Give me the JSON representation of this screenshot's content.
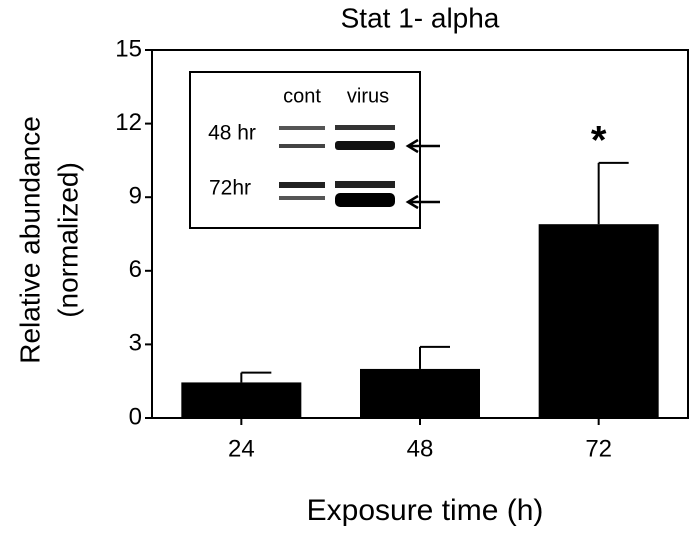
{
  "chart_data": {
    "type": "bar",
    "title": "Stat 1- alpha",
    "y_label": [
      "Relative abundance",
      "(normalized)"
    ],
    "x_label": "Exposure time (h)",
    "categories": [
      "24",
      "48",
      "72"
    ],
    "values": [
      1.45,
      2.0,
      7.9
    ],
    "errors": [
      0.4,
      0.9,
      2.5
    ],
    "color": "#000000",
    "ylim": [
      0,
      15
    ],
    "yticks": [
      0,
      3,
      6,
      9,
      12,
      15
    ],
    "annotations": [
      "*"
    ],
    "inset_labels": [
      "cont",
      "virus",
      "48 hr",
      "72hr"
    ]
  }
}
